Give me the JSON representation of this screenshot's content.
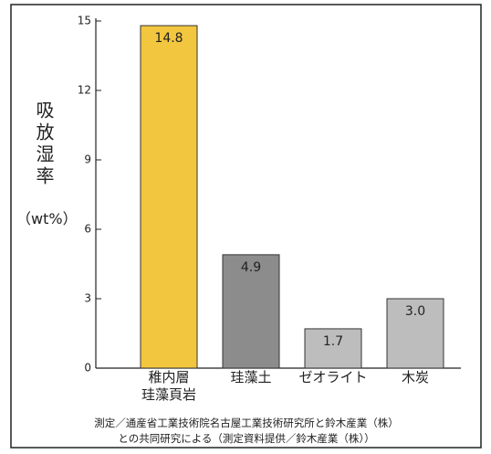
{
  "chart_data": {
    "type": "bar",
    "y_label": "吸放湿率",
    "y_unit": "（wt%）",
    "categories": [
      "稚内層\n珪藻頁岩",
      "珪藻土",
      "ゼオライト",
      "木炭"
    ],
    "values": [
      14.8,
      4.9,
      1.7,
      3.0
    ],
    "value_labels": [
      "14.8",
      "4.9",
      "1.7",
      "3.0"
    ],
    "colors": [
      "#f3c63f",
      "#8c8c8c",
      "#bdbdbd",
      "#bdbdbd"
    ],
    "ylim": [
      0,
      15
    ],
    "yticks": [
      0,
      3,
      6,
      9,
      12,
      15
    ],
    "notes": [
      "測定／通産省工業技術院名古屋工業技術研究所と鈴木産業（株）",
      "との共同研究による（測定資料提供／鈴木産業（株））"
    ]
  }
}
